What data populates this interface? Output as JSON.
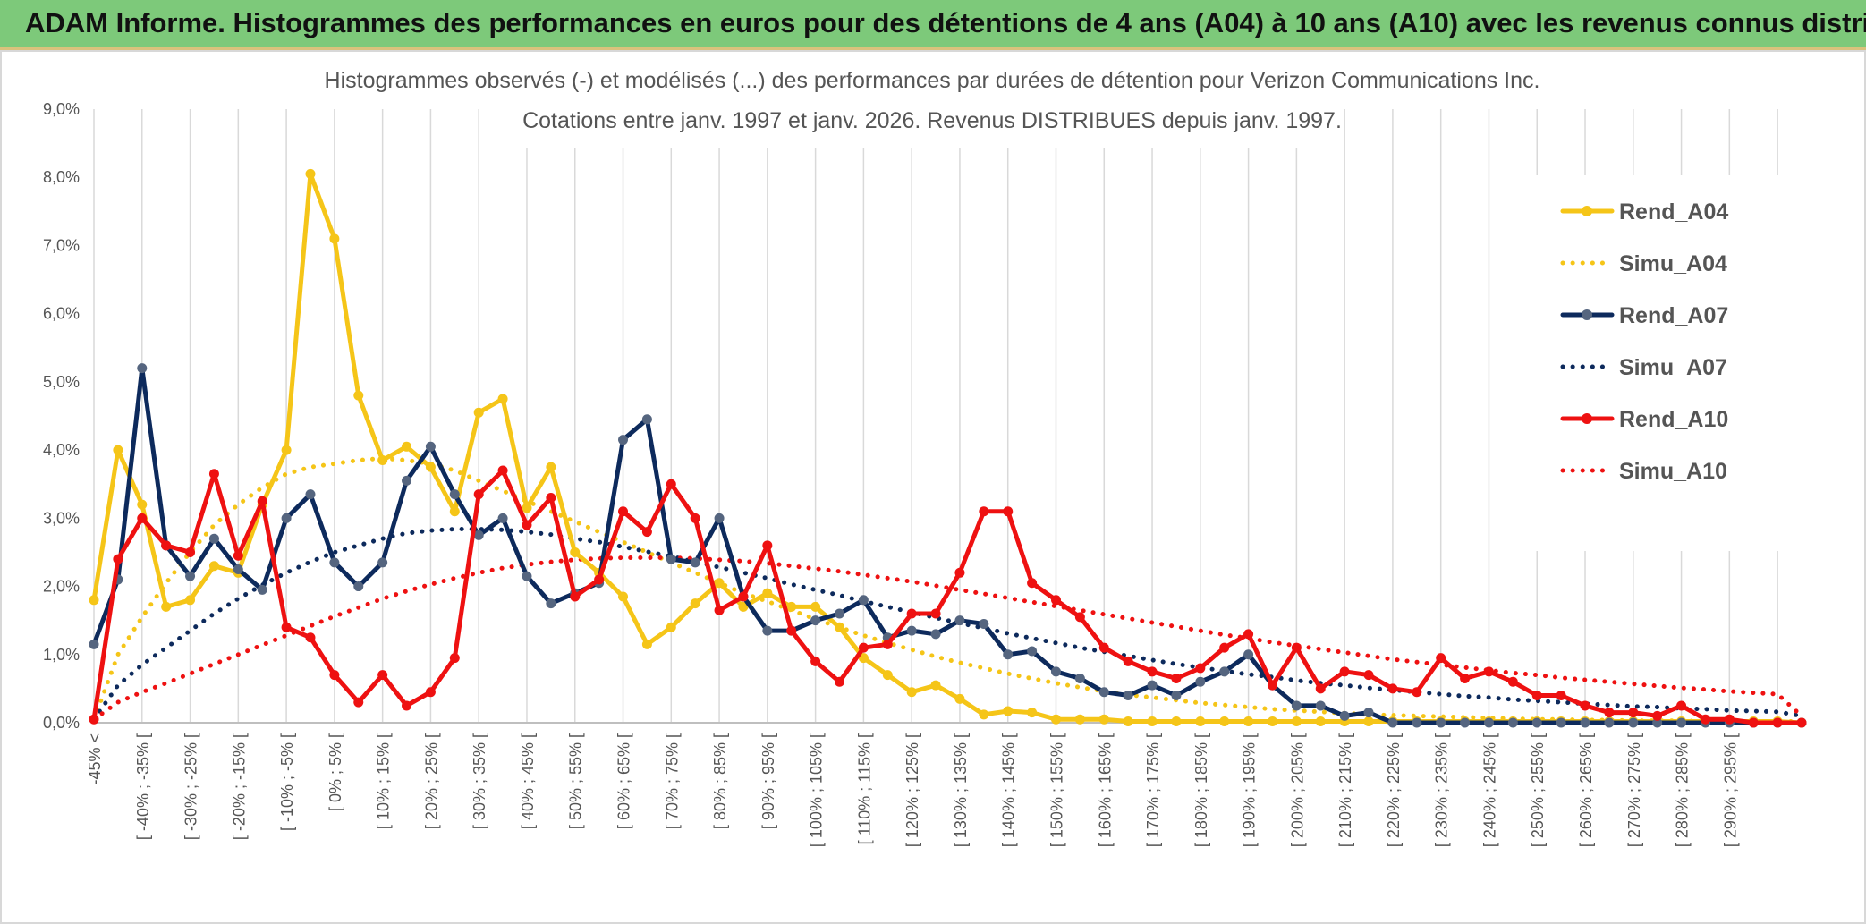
{
  "banner": {
    "title": "ADAM Informe. Histogrammes des performances en euros pour des détentions de 4 ans (A04) à 10 ans (A10) avec les revenus connus distribués"
  },
  "chart_data": {
    "type": "line",
    "title": "Histogrammes observés (-) et modélisés (...) des performances par durées de détention pour Verizon Communications Inc.",
    "subtitle": "Cotations entre janv. 1997 et janv. 2026. Revenus DISTRIBUES depuis janv. 1997.",
    "xlabel": "",
    "ylabel": "",
    "ylim": [
      0,
      9
    ],
    "y_ticks": [
      "0,0%",
      "1,0%",
      "2,0%",
      "3,0%",
      "4,0%",
      "5,0%",
      "6,0%",
      "7,0%",
      "8,0%",
      "9,0%"
    ],
    "x_labels": [
      "-45% <",
      "[ -40% ; -35% [",
      "[ -30% ; -25% [",
      "[ -20% ; -15% [",
      "[ -10% ; -5% [",
      "[ 0% ; 5% [",
      "[ 10% ; 15% [",
      "[ 20% ; 25% [",
      "[ 30% ; 35% [",
      "[ 40% ; 45% [",
      "[ 50% ; 55% [",
      "[ 60% ; 65% [",
      "[ 70% ; 75% [",
      "[ 80% ; 85% [",
      "[ 90% ; 95% [",
      "[ 100% ; 105% [",
      "[ 110% ; 115% [",
      "[ 120% ; 125% [",
      "[ 130% ; 135% [",
      "[ 140% ; 145% [",
      "[ 150% ; 155% [",
      "[ 160% ; 165% [",
      "[ 170% ; 175% [",
      "[ 180% ; 185% [",
      "[ 190% ; 195% [",
      "[ 200% ; 205% [",
      "[ 210% ; 215% [",
      "[ 220% ; 225% [",
      "[ 230% ; 235% [",
      "[ 240% ; 245% [",
      "[ 250% ; 255% [",
      "[ 260% ; 265% [",
      "[ 270% ; 275% [",
      "[ 280% ; 285% [",
      "[ 290% ; 295% ["
    ],
    "legend_position": "right",
    "grid": "vertical",
    "series": [
      {
        "name": "Rend_A04",
        "color": "#f5c518",
        "style": "solid",
        "markers": true,
        "values": [
          1.8,
          4.0,
          3.2,
          1.7,
          1.8,
          2.3,
          2.2,
          3.2,
          4.0,
          8.05,
          7.1,
          4.8,
          3.85,
          4.05,
          3.75,
          3.1,
          4.55,
          4.75,
          3.15,
          3.75,
          2.5,
          2.2,
          1.85,
          1.15,
          1.4,
          1.75,
          2.05,
          1.7,
          1.9,
          1.7,
          1.7,
          1.4,
          0.95,
          0.7,
          0.45,
          0.55,
          0.35,
          0.12,
          0.17,
          0.15,
          0.05,
          0.05,
          0.05,
          0.02,
          0.02,
          0.02,
          0.02,
          0.02,
          0.02,
          0.02,
          0.02,
          0.02,
          0.02,
          0.02,
          0.02,
          0.02,
          0.02,
          0.02,
          0.02,
          0.02,
          0.02,
          0.02,
          0.02,
          0.02,
          0.02,
          0.02,
          0.02,
          0.02,
          0.02,
          0.02,
          0.02,
          0.0
        ]
      },
      {
        "name": "Simu_A04",
        "color": "#f5c518",
        "style": "dotted",
        "markers": false,
        "values": [
          0.05,
          1.0,
          1.55,
          2.05,
          2.5,
          2.9,
          3.2,
          3.45,
          3.65,
          3.75,
          3.8,
          3.85,
          3.88,
          3.85,
          3.8,
          3.7,
          3.55,
          3.4,
          3.25,
          3.1,
          2.95,
          2.8,
          2.65,
          2.5,
          2.35,
          2.2,
          2.05,
          1.9,
          1.78,
          1.65,
          1.52,
          1.4,
          1.28,
          1.17,
          1.07,
          0.97,
          0.88,
          0.8,
          0.72,
          0.65,
          0.58,
          0.52,
          0.46,
          0.41,
          0.37,
          0.33,
          0.29,
          0.26,
          0.23,
          0.2,
          0.18,
          0.16,
          0.14,
          0.12,
          0.11,
          0.1,
          0.09,
          0.08,
          0.07,
          0.06,
          0.05,
          0.05,
          0.04,
          0.04,
          0.03,
          0.03,
          0.03,
          0.02,
          0.02,
          0.02,
          0.02,
          0.02
        ]
      },
      {
        "name": "Rend_A07",
        "color": "#0d2a5c",
        "style": "solid",
        "markers": true,
        "values": [
          1.15,
          2.1,
          5.2,
          2.6,
          2.15,
          2.7,
          2.25,
          1.95,
          3.0,
          3.35,
          2.35,
          2.0,
          2.35,
          3.55,
          4.05,
          3.35,
          2.75,
          3.0,
          2.15,
          1.75,
          1.9,
          2.05,
          4.15,
          4.45,
          2.4,
          2.35,
          3.0,
          1.85,
          1.35,
          1.35,
          1.5,
          1.6,
          1.8,
          1.25,
          1.35,
          1.3,
          1.5,
          1.45,
          1.0,
          1.05,
          0.75,
          0.65,
          0.45,
          0.4,
          0.55,
          0.4,
          0.6,
          0.75,
          1.0,
          0.55,
          0.25,
          0.25,
          0.1,
          0.15,
          0.0,
          0.0,
          0.0,
          0.0,
          0.0,
          0.0,
          0.0,
          0.0,
          0.0,
          0.0,
          0.0,
          0.0,
          0.0,
          0.0,
          0.0,
          0.0,
          0.0,
          0.0
        ]
      },
      {
        "name": "Simu_A07",
        "color": "#0d2a5c",
        "style": "dotted",
        "markers": false,
        "values": [
          0.05,
          0.55,
          0.85,
          1.1,
          1.35,
          1.6,
          1.82,
          2.02,
          2.2,
          2.36,
          2.5,
          2.6,
          2.7,
          2.78,
          2.82,
          2.84,
          2.84,
          2.83,
          2.8,
          2.76,
          2.7,
          2.65,
          2.58,
          2.51,
          2.44,
          2.36,
          2.28,
          2.2,
          2.12,
          2.03,
          1.95,
          1.87,
          1.78,
          1.7,
          1.62,
          1.54,
          1.46,
          1.39,
          1.31,
          1.24,
          1.17,
          1.1,
          1.04,
          0.98,
          0.92,
          0.86,
          0.81,
          0.76,
          0.71,
          0.67,
          0.62,
          0.58,
          0.55,
          0.51,
          0.48,
          0.45,
          0.42,
          0.39,
          0.37,
          0.34,
          0.32,
          0.3,
          0.28,
          0.26,
          0.24,
          0.23,
          0.21,
          0.2,
          0.18,
          0.17,
          0.16,
          0.1
        ]
      },
      {
        "name": "Rend_A10",
        "color": "#ee1111",
        "style": "solid",
        "markers": true,
        "values": [
          0.05,
          2.4,
          3.0,
          2.6,
          2.5,
          3.65,
          2.45,
          3.25,
          1.4,
          1.25,
          0.7,
          0.3,
          0.7,
          0.25,
          0.45,
          0.95,
          3.35,
          3.7,
          2.9,
          3.3,
          1.85,
          2.1,
          3.1,
          2.8,
          3.5,
          3.0,
          1.65,
          1.85,
          2.6,
          1.35,
          0.9,
          0.6,
          1.1,
          1.15,
          1.6,
          1.6,
          2.2,
          3.1,
          3.1,
          2.05,
          1.8,
          1.55,
          1.1,
          0.9,
          0.75,
          0.65,
          0.8,
          1.1,
          1.3,
          0.55,
          1.1,
          0.5,
          0.75,
          0.7,
          0.5,
          0.45,
          0.95,
          0.65,
          0.75,
          0.6,
          0.4,
          0.4,
          0.25,
          0.15,
          0.15,
          0.1,
          0.25,
          0.05,
          0.05,
          0.0,
          0.0,
          0.0
        ]
      },
      {
        "name": "Simu_A10",
        "color": "#ee1111",
        "style": "dotted",
        "markers": false,
        "values": [
          0.05,
          0.3,
          0.45,
          0.58,
          0.72,
          0.86,
          1.0,
          1.14,
          1.28,
          1.42,
          1.56,
          1.69,
          1.82,
          1.93,
          2.03,
          2.12,
          2.2,
          2.27,
          2.32,
          2.36,
          2.39,
          2.41,
          2.42,
          2.42,
          2.42,
          2.41,
          2.39,
          2.37,
          2.34,
          2.3,
          2.26,
          2.22,
          2.17,
          2.12,
          2.07,
          2.01,
          1.95,
          1.89,
          1.83,
          1.77,
          1.71,
          1.65,
          1.59,
          1.53,
          1.47,
          1.41,
          1.35,
          1.29,
          1.24,
          1.18,
          1.13,
          1.08,
          1.03,
          0.98,
          0.93,
          0.89,
          0.85,
          0.81,
          0.77,
          0.73,
          0.7,
          0.66,
          0.63,
          0.6,
          0.57,
          0.54,
          0.51,
          0.49,
          0.46,
          0.44,
          0.42,
          0.1
        ]
      }
    ]
  }
}
